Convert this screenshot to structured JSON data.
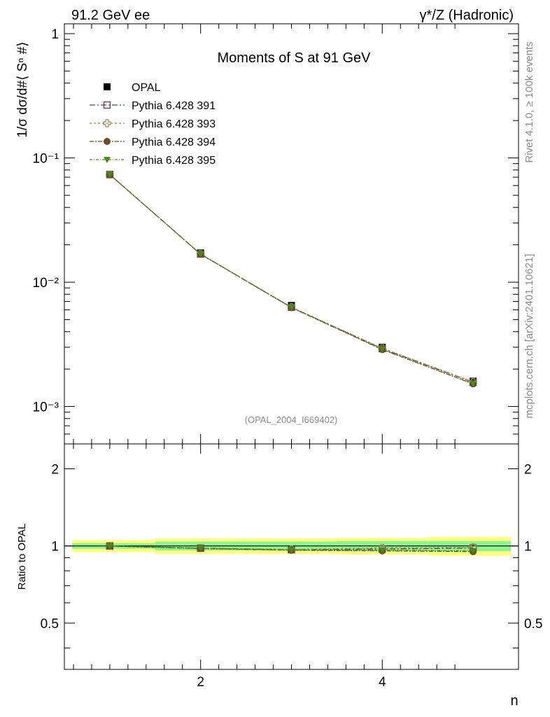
{
  "header": {
    "left": "91.2 GeV ee",
    "right": "γ*/Z (Hadronic)"
  },
  "side": {
    "rivet": "Rivet 4.1.0, ≥ 100k events",
    "mcplots": "mcplots.cern.ch [arXiv:2401.10621]"
  },
  "chart_data": {
    "type": "line",
    "title": "Moments of S at 91 GeV",
    "ylabel": "1/σ  dσ/d#⟨ Sⁿ #⟩",
    "xlabel": "n",
    "analysis_tag": "(OPAL_2004_I669402)",
    "yscale": "log",
    "xlim": [
      0.5,
      5.5
    ],
    "ylim": [
      0.0005,
      1.2
    ],
    "x": [
      1,
      2,
      3,
      4,
      5
    ],
    "x_ticks": [
      "2",
      "4"
    ],
    "y_ticks": [
      "1",
      "10⁻¹",
      "10⁻²",
      "10⁻³"
    ],
    "series": [
      {
        "name": "OPAL",
        "color": "#000000",
        "marker": "square",
        "values": [
          0.0735,
          0.0172,
          0.0065,
          0.003,
          0.0016
        ]
      },
      {
        "name": "Pythia 6.428 391",
        "color": "#6b3a50",
        "marker": "open-square",
        "values": [
          0.0735,
          0.01685,
          0.00628,
          0.00292,
          0.00157
        ]
      },
      {
        "name": "Pythia 6.428 393",
        "color": "#9a8a5a",
        "marker": "open-cross",
        "values": [
          0.0735,
          0.01688,
          0.0063,
          0.00295,
          0.00158
        ]
      },
      {
        "name": "Pythia 6.428 394",
        "color": "#6b4a2a",
        "marker": "circle",
        "values": [
          0.0734,
          0.0168,
          0.00625,
          0.00287,
          0.00152
        ]
      },
      {
        "name": "Pythia 6.428 395",
        "color": "#4a8a1a",
        "marker": "triangle-down",
        "values": [
          0.0734,
          0.01682,
          0.00626,
          0.00289,
          0.00153
        ]
      }
    ],
    "ratio": {
      "ylabel": "Ratio to OPAL",
      "ylim": [
        0.33,
        2.5
      ],
      "y_ticks": [
        "2",
        "1",
        "0.5"
      ],
      "band_inner": [
        0.025,
        0.04,
        0.04,
        0.045,
        0.045
      ],
      "band_outer": [
        0.055,
        0.07,
        0.07,
        0.075,
        0.085
      ],
      "series_values": [
        [
          1.0,
          0.98,
          0.966,
          0.973,
          0.981
        ],
        [
          1.0,
          0.981,
          0.969,
          0.983,
          0.988
        ],
        [
          0.999,
          0.977,
          0.962,
          0.957,
          0.95
        ],
        [
          0.999,
          0.978,
          0.963,
          0.963,
          0.956
        ]
      ]
    }
  }
}
